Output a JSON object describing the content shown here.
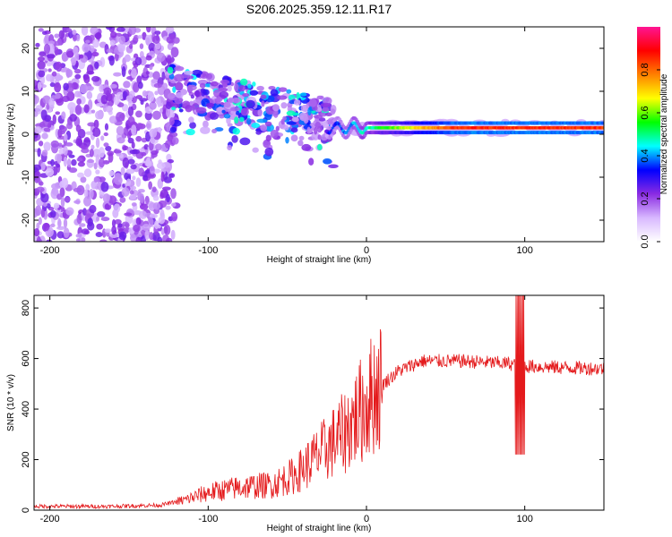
{
  "title": "S206.2025.359.12.11.R17",
  "chart_data": [
    {
      "type": "heatmap",
      "xlabel": "Height of straight line (km)",
      "ylabel": "Frequency (Hz)",
      "xlim": [
        -210,
        150
      ],
      "ylim": [
        -25,
        25
      ],
      "xticks": [
        -200,
        -100,
        0,
        100
      ],
      "yticks": [
        -20,
        -10,
        0,
        10,
        20
      ],
      "colorbar": {
        "label": "Normalized spectral amplitude",
        "range": [
          0,
          1
        ],
        "ticks": [
          "0.0",
          "0.2",
          "0.4",
          "0.6",
          "0.8"
        ],
        "tick_values": [
          0,
          0.2,
          0.4,
          0.6,
          0.8
        ],
        "colormap": [
          "#ffffff",
          "#d8b8ff",
          "#8a2be2",
          "#0000ff",
          "#00ffff",
          "#00ff00",
          "#ffff00",
          "#ff8000",
          "#ff0000",
          "#ff1493"
        ]
      },
      "features": {
        "noise_region_km": [
          -210,
          -130
        ],
        "ridge_start": {
          "height_km": -125,
          "frequency_hz": 11
        },
        "ridge_end": {
          "height_km": -20,
          "frequency_hz": 3
        },
        "carrier_frequency_hz": 1.5,
        "carrier_start_km": -10,
        "carrier_peak_amplitude": 0.95
      }
    },
    {
      "type": "line",
      "xlabel": "Height of straight line (km)",
      "ylabel": "SNR (10 * v/v)",
      "xlim": [
        -210,
        150
      ],
      "ylim": [
        0,
        850
      ],
      "xticks": [
        -200,
        -100,
        0,
        100
      ],
      "yticks": [
        0,
        200,
        400,
        600,
        800
      ],
      "color": "#e41a1c",
      "envelope": {
        "x": [
          -210,
          -160,
          -130,
          -115,
          -100,
          -80,
          -60,
          -45,
          -30,
          -15,
          -5,
          5,
          20,
          35,
          60,
          90,
          100,
          120,
          150
        ],
        "y": [
          15,
          15,
          20,
          40,
          70,
          90,
          100,
          140,
          220,
          300,
          380,
          470,
          550,
          590,
          590,
          580,
          570,
          565,
          560
        ]
      },
      "spike": {
        "x": 97,
        "min": 220,
        "max": 850
      }
    }
  ]
}
